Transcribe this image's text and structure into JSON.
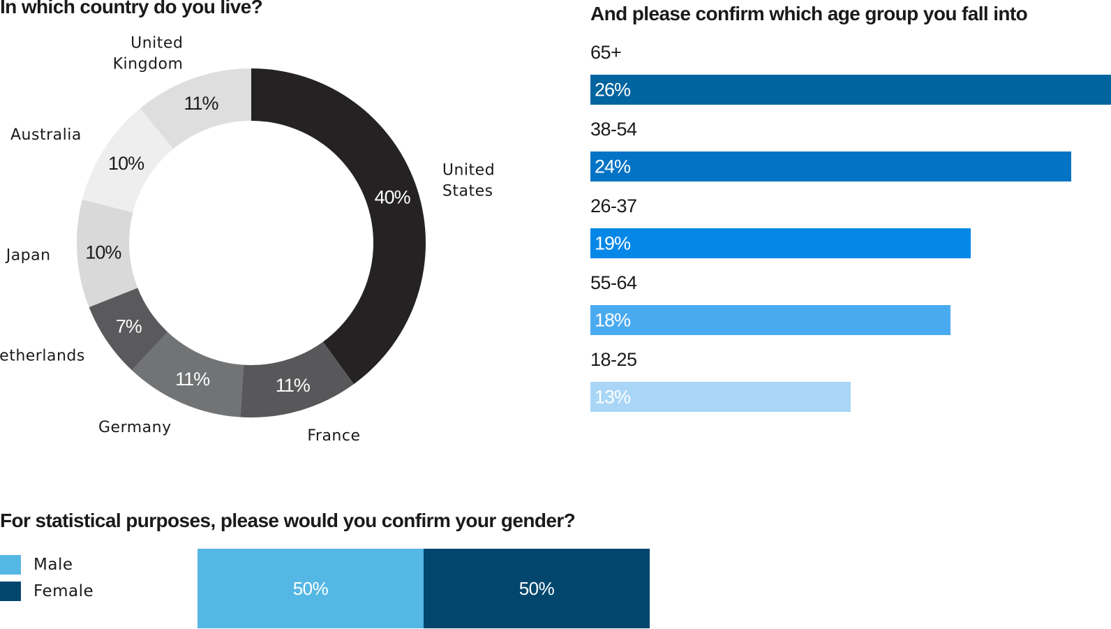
{
  "titles": {
    "country": "In which country do you live?",
    "age": "And please confirm which age group you fall into",
    "gender": "For statistical purposes, please would you confirm your gender?"
  },
  "chart_data": [
    {
      "type": "pie",
      "title": "In which country do you live?",
      "categories": [
        "United States",
        "France",
        "Germany",
        "Netherlands",
        "Japan",
        "Australia",
        "United Kingdom"
      ],
      "label_lines": [
        [
          "United",
          "States"
        ],
        [
          "France"
        ],
        [
          "Germany"
        ],
        [
          "Netherlands"
        ],
        [
          "Japan"
        ],
        [
          "Australia"
        ],
        [
          "United",
          "Kingdom"
        ]
      ],
      "values": [
        40,
        11,
        11,
        7,
        10,
        10,
        11
      ],
      "value_labels": [
        "40%",
        "11%",
        "11%",
        "7%",
        "10%",
        "10%",
        "11%"
      ],
      "colors": [
        "#252223",
        "#58585a",
        "#717375",
        "#5a5a5c",
        "#d9d9d9",
        "#eeeeee",
        "#dedede"
      ],
      "label_colors": [
        "#ffffff",
        "#ffffff",
        "#ffffff",
        "#ffffff",
        "#1a1a1a",
        "#1a1a1a",
        "#1a1a1a"
      ]
    },
    {
      "type": "bar",
      "orientation": "horizontal",
      "title": "And please confirm which age group you fall into",
      "categories": [
        "65+",
        "38-54",
        "26-37",
        "55-64",
        "18-25"
      ],
      "values": [
        26,
        24,
        19,
        18,
        13
      ],
      "value_labels": [
        "26%",
        "24%",
        "19%",
        "18%",
        "13%"
      ],
      "colors": [
        "#00649f",
        "#0373c5",
        "#0587e8",
        "#4aaaf0",
        "#a9d6f7"
      ],
      "xlim": [
        0,
        26
      ]
    },
    {
      "type": "bar",
      "orientation": "horizontal",
      "stacked": true,
      "title": "For statistical purposes, please would you confirm your gender?",
      "series": [
        {
          "name": "Male",
          "values": [
            50
          ],
          "label": "50%",
          "color": "#55b7e3"
        },
        {
          "name": "Female",
          "values": [
            50
          ],
          "label": "50%",
          "color": "#02466e"
        }
      ],
      "legend_position": "left"
    }
  ]
}
